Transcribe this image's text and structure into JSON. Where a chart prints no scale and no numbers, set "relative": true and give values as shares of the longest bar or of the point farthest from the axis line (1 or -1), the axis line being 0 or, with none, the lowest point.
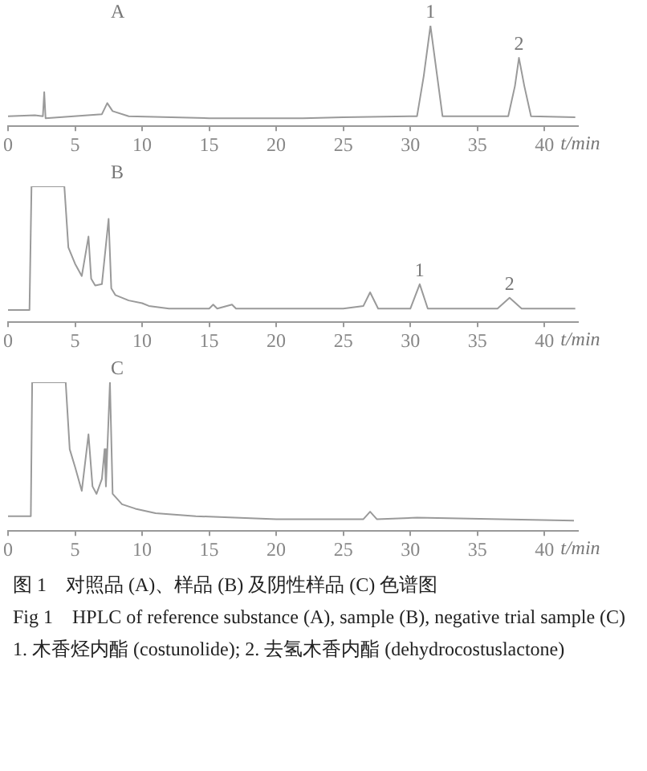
{
  "chart_data": [
    {
      "type": "line",
      "title": "A",
      "xlabel": "t/min",
      "relative": true,
      "marker": "none",
      "legend": false,
      "xlim": [
        0,
        42.5
      ],
      "xticks": [
        0,
        5,
        10,
        15,
        20,
        25,
        30,
        35,
        40
      ],
      "x": [
        0,
        2,
        2.6,
        2.7,
        2.8,
        7.0,
        7.4,
        7.8,
        9,
        15,
        22,
        25,
        30.5,
        31.0,
        31.5,
        32.0,
        32.4,
        37.3,
        37.8,
        38.1,
        38.5,
        39.0,
        42.3
      ],
      "series": [
        {
          "color": "#9a9a9a",
          "values": [
            0.1,
            0.11,
            0.1,
            0.34,
            0.08,
            0.12,
            0.23,
            0.15,
            0.1,
            0.08,
            0.08,
            0.09,
            0.1,
            0.5,
            1,
            0.5,
            0.1,
            0.1,
            0.4,
            0.68,
            0.4,
            0.1,
            0.09
          ]
        }
      ],
      "annotations": [
        {
          "text": "1",
          "x": 31.5,
          "y": 1
        },
        {
          "text": "2",
          "x": 38.1,
          "y": 0.68
        }
      ]
    },
    {
      "type": "line",
      "title": "B",
      "xlabel": "t/min",
      "relative": true,
      "marker": "none",
      "legend": false,
      "xlim": [
        0,
        42.5
      ],
      "xticks": [
        0,
        5,
        10,
        15,
        20,
        25,
        30,
        35,
        40
      ],
      "x": [
        0,
        1.6,
        1.75,
        3.9,
        4.2,
        4.5,
        5.0,
        5.5,
        6.0,
        6.2,
        6.5,
        7.0,
        7.5,
        7.7,
        8,
        9,
        10,
        10.5,
        12,
        15,
        15.3,
        15.6,
        16.7,
        17,
        19,
        25,
        26.5,
        27.0,
        27.6,
        30,
        30.7,
        31.3,
        36.5,
        37.4,
        38.3,
        42.3
      ],
      "series": [
        {
          "color": "#9a9a9a",
          "values": [
            0.09,
            0.09,
            1,
            1,
            1,
            0.55,
            0.43,
            0.34,
            0.63,
            0.32,
            0.27,
            0.28,
            0.76,
            0.25,
            0.2,
            0.16,
            0.14,
            0.12,
            0.1,
            0.1,
            0.13,
            0.1,
            0.13,
            0.1,
            0.1,
            0.1,
            0.12,
            0.22,
            0.1,
            0.1,
            0.28,
            0.1,
            0.1,
            0.18,
            0.1,
            0.1
          ]
        }
      ],
      "annotations": [
        {
          "text": "1",
          "x": 30.7,
          "y": 0.28
        },
        {
          "text": "2",
          "x": 37.4,
          "y": 0.18
        }
      ]
    },
    {
      "type": "line",
      "title": "C",
      "xlabel": "t/min",
      "relative": true,
      "marker": "none",
      "legend": false,
      "xlim": [
        0,
        42.5
      ],
      "xticks": [
        0,
        5,
        10,
        15,
        20,
        25,
        30,
        35,
        40
      ],
      "x": [
        0,
        1.7,
        1.8,
        4.3,
        4.6,
        5.0,
        5.5,
        6.0,
        6.3,
        6.6,
        7.0,
        7.2,
        7.3,
        7.6,
        7.8,
        8.5,
        9.5,
        11,
        14,
        20,
        26.5,
        27.0,
        27.5,
        30.5,
        42.2
      ],
      "series": [
        {
          "color": "#9a9a9a",
          "values": [
            0.1,
            0.1,
            1,
            1,
            0.55,
            0.43,
            0.27,
            0.65,
            0.3,
            0.25,
            0.35,
            0.55,
            0.3,
            1,
            0.25,
            0.18,
            0.15,
            0.12,
            0.1,
            0.08,
            0.08,
            0.13,
            0.08,
            0.09,
            0.07
          ]
        }
      ],
      "annotations": [
        "图 1　对照品 (A)、样品 (B) 及阴性样品 (C) 色谱图",
        "Fig 1　HPLC of reference substance (A), sample (B), negative trial sample (C)",
        "1. 木香烃内酯 (costunolide); 2. 去氢木香内酯 (dehydrocostuslactone)"
      ]
    }
  ]
}
